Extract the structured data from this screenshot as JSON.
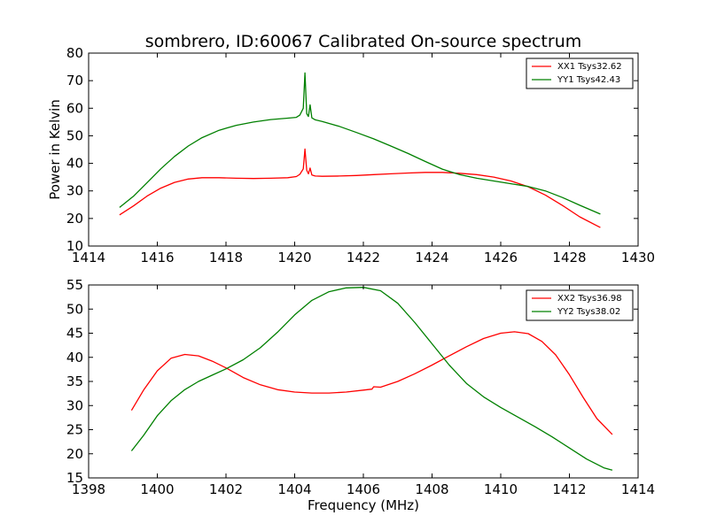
{
  "figure": {
    "title": "sombrero, ID:60067 Calibrated On-source spectrum"
  },
  "colors": {
    "red": "#ff0000",
    "green": "#008000"
  },
  "chart_data": [
    {
      "type": "line",
      "title": "sombrero, ID:60067 Calibrated On-source spectrum",
      "xlabel": "",
      "ylabel": "Power in Kelvin",
      "xlim": [
        1414,
        1430
      ],
      "ylim": [
        10,
        80
      ],
      "xticks": [
        1414,
        1416,
        1418,
        1420,
        1422,
        1424,
        1426,
        1428,
        1430
      ],
      "yticks": [
        10,
        20,
        30,
        40,
        50,
        60,
        70,
        80
      ],
      "legend_position": "top-right",
      "series": [
        {
          "name": "XX1 Tsys32.62",
          "color": "#ff0000",
          "x": [
            1414.9,
            1415.3,
            1415.7,
            1416.1,
            1416.5,
            1416.9,
            1417.3,
            1417.8,
            1418.3,
            1418.8,
            1419.3,
            1419.8,
            1420.05,
            1420.15,
            1420.25,
            1420.3,
            1420.35,
            1420.4,
            1420.45,
            1420.5,
            1420.6,
            1420.8,
            1421.3,
            1421.8,
            1422.3,
            1422.8,
            1423.3,
            1423.8,
            1424.3,
            1424.8,
            1425.3,
            1425.8,
            1426.3,
            1426.8,
            1427.3,
            1427.8,
            1428.3,
            1428.9
          ],
          "y": [
            21.3,
            24.5,
            28.1,
            31.0,
            33.1,
            34.3,
            34.8,
            34.8,
            34.6,
            34.5,
            34.6,
            34.8,
            35.2,
            36.0,
            38.0,
            45.2,
            37.5,
            36.2,
            38.3,
            35.8,
            35.4,
            35.3,
            35.4,
            35.6,
            35.9,
            36.2,
            36.5,
            36.7,
            36.7,
            36.4,
            35.9,
            35.0,
            33.6,
            31.5,
            28.5,
            24.7,
            20.6,
            16.7
          ]
        },
        {
          "name": "YY1 Tsys42.43",
          "color": "#008000",
          "x": [
            1414.9,
            1415.3,
            1415.7,
            1416.1,
            1416.5,
            1416.9,
            1417.3,
            1417.8,
            1418.3,
            1418.8,
            1419.3,
            1419.8,
            1420.05,
            1420.15,
            1420.25,
            1420.3,
            1420.35,
            1420.4,
            1420.45,
            1420.5,
            1420.6,
            1420.8,
            1421.3,
            1421.8,
            1422.3,
            1422.8,
            1423.3,
            1423.8,
            1424.3,
            1424.8,
            1425.3,
            1425.8,
            1426.3,
            1426.8,
            1427.3,
            1427.8,
            1428.3,
            1428.9
          ],
          "y": [
            24.0,
            28.0,
            33.0,
            38.0,
            42.5,
            46.3,
            49.3,
            52.0,
            53.8,
            55.0,
            55.9,
            56.4,
            56.7,
            57.5,
            60.0,
            72.8,
            58.0,
            57.0,
            61.2,
            56.5,
            55.8,
            55.2,
            53.4,
            51.2,
            48.9,
            46.3,
            43.6,
            40.7,
            37.9,
            35.9,
            34.6,
            33.6,
            32.6,
            31.6,
            30.0,
            27.6,
            24.8,
            21.6
          ]
        }
      ]
    },
    {
      "type": "line",
      "title": "",
      "xlabel": "Frequency (MHz)",
      "ylabel": "",
      "xlim": [
        1398,
        1414
      ],
      "ylim": [
        15,
        55
      ],
      "xticks": [
        1398,
        1400,
        1402,
        1404,
        1406,
        1408,
        1410,
        1412,
        1414
      ],
      "yticks": [
        15,
        20,
        25,
        30,
        35,
        40,
        45,
        50,
        55
      ],
      "legend_position": "top-right",
      "series": [
        {
          "name": "XX2 Tsys36.98",
          "color": "#ff0000",
          "x": [
            1399.25,
            1399.6,
            1400.0,
            1400.4,
            1400.8,
            1401.2,
            1401.6,
            1402.0,
            1402.5,
            1403.0,
            1403.5,
            1404.0,
            1404.5,
            1405.0,
            1405.5,
            1406.0,
            1406.25,
            1406.3,
            1406.5,
            1407.0,
            1407.5,
            1408.0,
            1408.5,
            1409.0,
            1409.5,
            1410.0,
            1410.4,
            1410.8,
            1411.2,
            1411.6,
            1412.0,
            1412.4,
            1412.8,
            1413.25
          ],
          "y": [
            29.0,
            33.2,
            37.2,
            39.8,
            40.6,
            40.3,
            39.2,
            37.8,
            35.8,
            34.3,
            33.3,
            32.8,
            32.6,
            32.6,
            32.8,
            33.2,
            33.4,
            33.9,
            33.8,
            35.0,
            36.6,
            38.4,
            40.3,
            42.2,
            43.9,
            45.0,
            45.3,
            44.9,
            43.3,
            40.5,
            36.4,
            31.7,
            27.3,
            24.0
          ]
        },
        {
          "name": "YY2 Tsys38.02",
          "color": "#008000",
          "x": [
            1399.25,
            1399.6,
            1400.0,
            1400.4,
            1400.8,
            1401.2,
            1401.6,
            1402.0,
            1402.5,
            1403.0,
            1403.5,
            1404.0,
            1404.5,
            1405.0,
            1405.5,
            1406.0,
            1406.5,
            1407.0,
            1407.5,
            1408.0,
            1408.5,
            1409.0,
            1409.5,
            1410.0,
            1410.5,
            1411.0,
            1411.5,
            1412.0,
            1412.5,
            1413.0,
            1413.25
          ],
          "y": [
            20.6,
            23.8,
            27.9,
            31.0,
            33.3,
            35.0,
            36.3,
            37.6,
            39.5,
            42.0,
            45.2,
            48.8,
            51.8,
            53.6,
            54.4,
            54.5,
            53.8,
            51.2,
            47.2,
            42.8,
            38.4,
            34.6,
            31.8,
            29.6,
            27.6,
            25.6,
            23.5,
            21.2,
            18.9,
            17.1,
            16.6
          ]
        }
      ]
    }
  ]
}
